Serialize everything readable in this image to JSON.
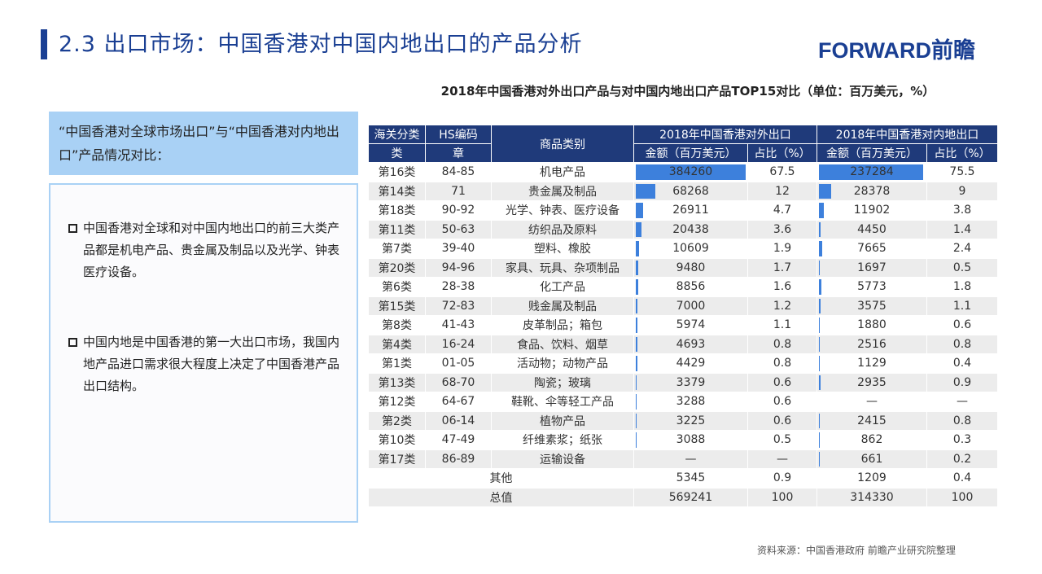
{
  "header": {
    "title": "2.3 出口市场：中国香港对中国内地出口的产品分析",
    "logo": "FORWARD前瞻"
  },
  "table_title": "2018年中国香港对外出口产品与对中国内地出口产品TOP15对比（单位：百万美元，%）",
  "left": {
    "heading": "“中国香港对全球市场出口”与“中国香港对内地出口”产品情况对比：",
    "bullets": [
      "中国香港对全球和对中国内地出口的前三大类产品都是机电产品、贵金属及制品以及光学、钟表医疗设备。",
      "中国内地是中国香港的第一大出口市场，我国内地产品进口需求很大程度上决定了中国香港产品出口结构。"
    ]
  },
  "columns": {
    "cls": "海关分类",
    "cls2": "类",
    "hs": "HS编码",
    "hs2": "章",
    "product": "商品类别",
    "export": "2018年中国香港对外出口",
    "mainland": "2018年中国香港对内地出口",
    "amount": "金额（百万美元）",
    "share": "占比（%）"
  },
  "rows": [
    [
      "第16类",
      "84-85",
      "机电产品",
      "384260",
      "67.5",
      "237284",
      "75.5"
    ],
    [
      "第14类",
      "71",
      "贵金属及制品",
      "68268",
      "12",
      "28378",
      "9"
    ],
    [
      "第18类",
      "90-92",
      "光学、钟表、医疗设备",
      "26911",
      "4.7",
      "11902",
      "3.8"
    ],
    [
      "第11类",
      "50-63",
      "纺织品及原料",
      "20438",
      "3.6",
      "4450",
      "1.4"
    ],
    [
      "第7类",
      "39-40",
      "塑料、橡胶",
      "10609",
      "1.9",
      "7665",
      "2.4"
    ],
    [
      "第20类",
      "94-96",
      "家具、玩具、杂项制品",
      "9480",
      "1.7",
      "1697",
      "0.5"
    ],
    [
      "第6类",
      "28-38",
      "化工产品",
      "8856",
      "1.6",
      "5773",
      "1.8"
    ],
    [
      "第15类",
      "72-83",
      "贱金属及制品",
      "7000",
      "1.2",
      "3575",
      "1.1"
    ],
    [
      "第8类",
      "41-43",
      "皮革制品；箱包",
      "5974",
      "1.1",
      "1880",
      "0.6"
    ],
    [
      "第4类",
      "16-24",
      "食品、饮料、烟草",
      "4693",
      "0.8",
      "2516",
      "0.8"
    ],
    [
      "第1类",
      "01-05",
      "活动物；动物产品",
      "4429",
      "0.8",
      "1129",
      "0.4"
    ],
    [
      "第13类",
      "68-70",
      "陶瓷；玻璃",
      "3379",
      "0.6",
      "2935",
      "0.9"
    ],
    [
      "第12类",
      "64-67",
      "鞋靴、伞等轻工产品",
      "3288",
      "0.6",
      "—",
      "—"
    ],
    [
      "第2类",
      "06-14",
      "植物产品",
      "3225",
      "0.6",
      "2415",
      "0.8"
    ],
    [
      "第10类",
      "47-49",
      "纤维素浆；纸张",
      "3088",
      "0.5",
      "862",
      "0.3"
    ],
    [
      "第17类",
      "86-89",
      "运输设备",
      "—",
      "—",
      "661",
      "0.2"
    ]
  ],
  "other": {
    "label": "其他",
    "v1": "5345",
    "p1": "0.9",
    "v2": "1209",
    "p2": "0.4"
  },
  "total": {
    "label": "总值",
    "v1": "569241",
    "p1": "100",
    "v2": "314330",
    "p2": "100"
  },
  "source": "资料来源：中国香港政府  前瞻产业研究院整理",
  "colors": {
    "accent": "#1a3f93",
    "header": "#1f3a7a",
    "bar": "#3d80dc",
    "box": "#a9d1f5"
  }
}
